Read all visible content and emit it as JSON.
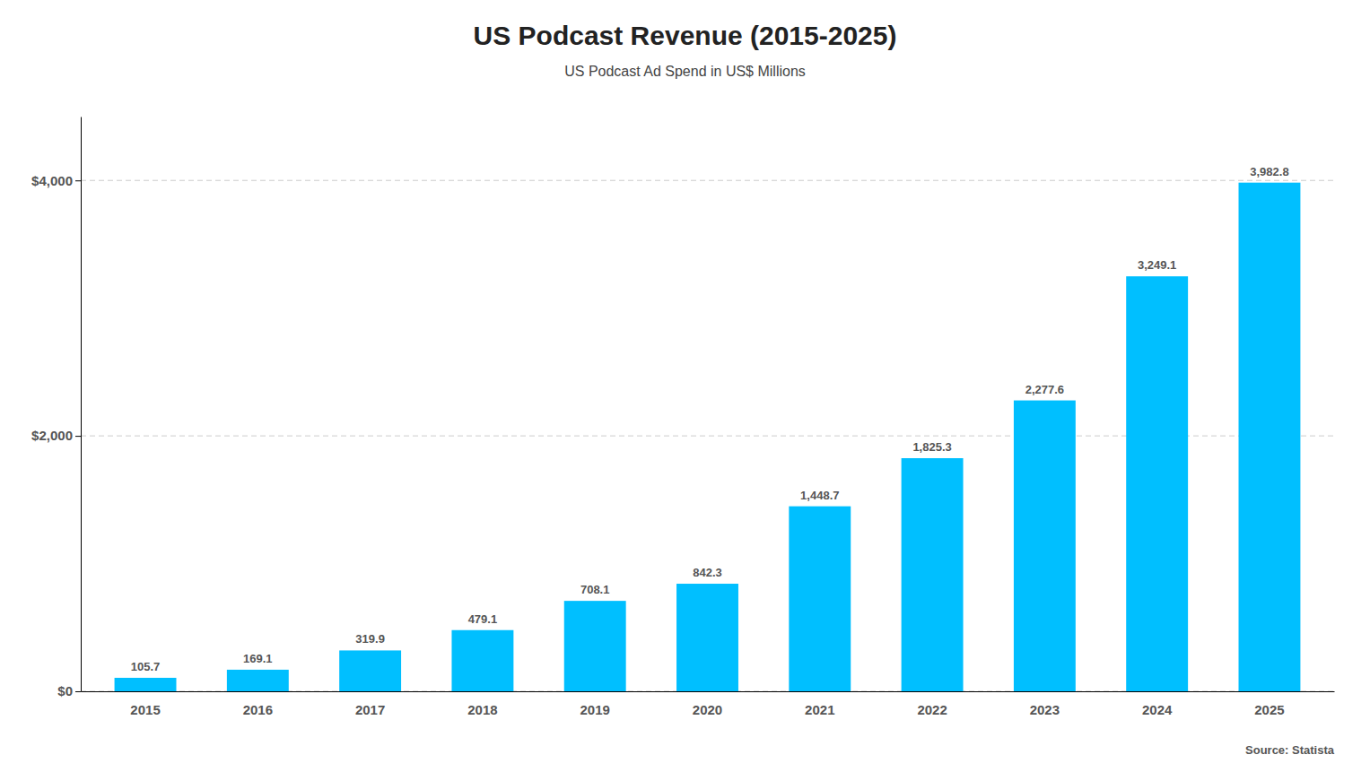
{
  "chart_data": {
    "type": "bar",
    "title": "US Podcast Revenue (2015-2025)",
    "subtitle": "US Podcast Ad Spend in US$ Millions",
    "source": "Source: Statista",
    "categories": [
      "2015",
      "2016",
      "2017",
      "2018",
      "2019",
      "2020",
      "2021",
      "2022",
      "2023",
      "2024",
      "2025"
    ],
    "values": [
      105.7,
      169.1,
      319.9,
      479.1,
      708.1,
      842.3,
      1448.7,
      1825.3,
      2277.6,
      3249.1,
      3982.8
    ],
    "value_labels": [
      "105.7",
      "169.1",
      "319.9",
      "479.1",
      "708.1",
      "842.3",
      "1,448.7",
      "1,825.3",
      "2,277.6",
      "3,249.1",
      "3,982.8"
    ],
    "data_labels": true,
    "color": "#00BFFF",
    "ylim": [
      0,
      4500
    ],
    "yticks": [
      {
        "value": 0,
        "label": "$0"
      },
      {
        "value": 2000,
        "label": "$2,000"
      },
      {
        "value": 4000,
        "label": "$4,000"
      }
    ],
    "grid": true
  }
}
